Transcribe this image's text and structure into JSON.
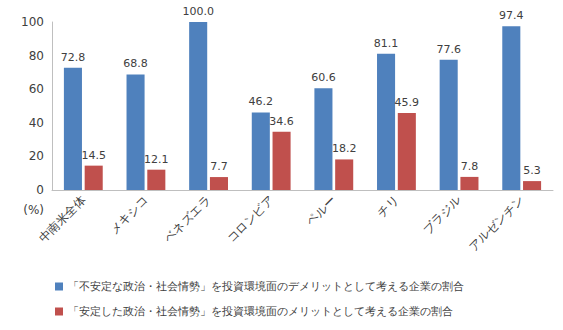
{
  "chart_data": {
    "type": "bar",
    "y_label": "(%)",
    "categories": [
      "中南米全体",
      "メキシコ",
      "ベネズエラ",
      "コロンビア",
      "ペルー",
      "チリ",
      "ブラジル",
      "アルゼンチン"
    ],
    "series": [
      {
        "name": "「不安定な政治・社会情勢」を投資環境面のデメリットとして考える企業の割合",
        "color": "#4f81bd",
        "values": [
          72.8,
          68.8,
          100.0,
          46.2,
          60.6,
          81.1,
          77.6,
          97.4
        ],
        "value_labels": [
          "72.8",
          "68.8",
          "100.0",
          "46.2",
          "60.6",
          "81.1",
          "77.6",
          "97.4"
        ]
      },
      {
        "name": "「安定した政治・社会情勢」を投資環境面のメリットとして考える企業の割合",
        "color": "#c0504d",
        "values": [
          14.5,
          12.1,
          7.7,
          34.6,
          18.2,
          45.9,
          7.8,
          5.3
        ],
        "value_labels": [
          "14.5",
          "12.1",
          "7.7",
          "34.6",
          "18.2",
          "45.9",
          "7.8",
          "5.3"
        ]
      }
    ],
    "ylim": [
      0,
      100
    ],
    "yticks": [
      0,
      20,
      40,
      60,
      80,
      100
    ],
    "grid": false,
    "legend": "bottom",
    "data_labels": true
  }
}
